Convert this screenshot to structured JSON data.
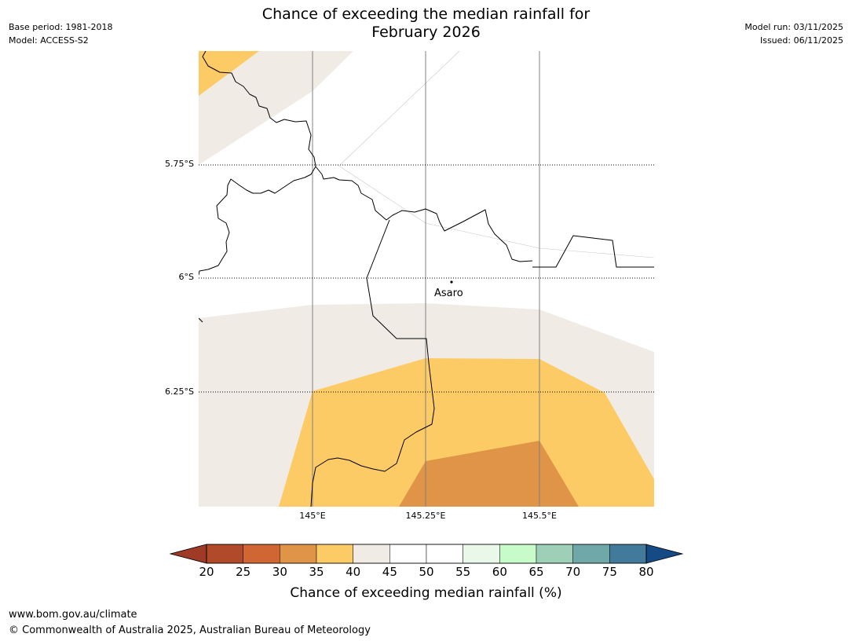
{
  "header": {
    "base_period": "Base period: 1981-2018",
    "model": "Model: ACCESS-S2",
    "title_line1": "Chance of exceeding the median rainfall for",
    "title_line2": "February 2026",
    "model_run": "Model run: 03/11/2025",
    "issued": "Issued: 06/11/2025"
  },
  "map": {
    "latitude_labels": [
      "5.75°S",
      "6°S",
      "6.25°S"
    ],
    "longitude_labels": [
      "145°E",
      "145.25°E",
      "145.5°E"
    ],
    "place_label": "Asaro",
    "colors": {
      "band_40_45": "#f0ebe5",
      "band_35_40": "#fdcb66",
      "band_30_35": "#e09448",
      "coastline": "#000000",
      "gridline": "#808080"
    }
  },
  "colorbar": {
    "ticks": [
      "20",
      "25",
      "30",
      "35",
      "40",
      "45",
      "50",
      "55",
      "60",
      "65",
      "70",
      "75",
      "80"
    ],
    "under_color": "#9e3a26",
    "over_color": "#154a85",
    "segment_colors": [
      "#b04a28",
      "#cf6633",
      "#e09448",
      "#fdcb66",
      "#f0ebe5",
      "#ffffff",
      "#ffffff",
      "#eaf8ea",
      "#c8fbca",
      "#9ed0b8",
      "#70a7a8",
      "#427a9c"
    ],
    "label": "Chance of exceeding median rainfall (%)"
  },
  "footer": {
    "url": "www.bom.gov.au/climate",
    "copyright": "© Commonwealth of Australia 2025, Australian Bureau of Meteorology"
  }
}
